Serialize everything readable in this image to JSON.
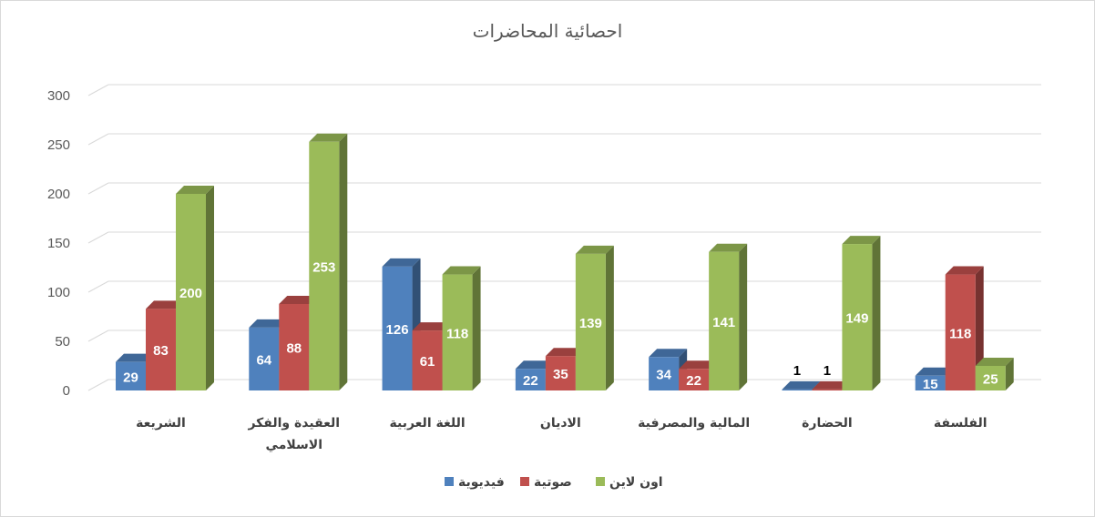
{
  "chart_data": {
    "type": "bar",
    "title": "احصائية المحاضرات",
    "categories": [
      [
        "الشريعة"
      ],
      [
        "العقيدة والفكر",
        "الاسلامي"
      ],
      [
        "اللغة العربية"
      ],
      [
        "الاديان"
      ],
      [
        "المالية والمصرفية"
      ],
      [
        "الحضارة"
      ],
      [
        "الفلسفة"
      ]
    ],
    "series": [
      {
        "name": "فيديوية",
        "color": "#4F81BD",
        "values": [
          29,
          64,
          126,
          22,
          34,
          1,
          15
        ]
      },
      {
        "name": "صوتية",
        "color": "#C0504D",
        "values": [
          83,
          88,
          61,
          35,
          22,
          1,
          118
        ]
      },
      {
        "name": "اون لاين",
        "color": "#9BBB59",
        "values": [
          200,
          253,
          118,
          139,
          141,
          149,
          25
        ]
      }
    ],
    "ylim": [
      0,
      300
    ],
    "yticks": [
      "0",
      "50",
      "100",
      "150",
      "200",
      "250",
      "300"
    ],
    "grid": true,
    "legend": "bottom"
  }
}
